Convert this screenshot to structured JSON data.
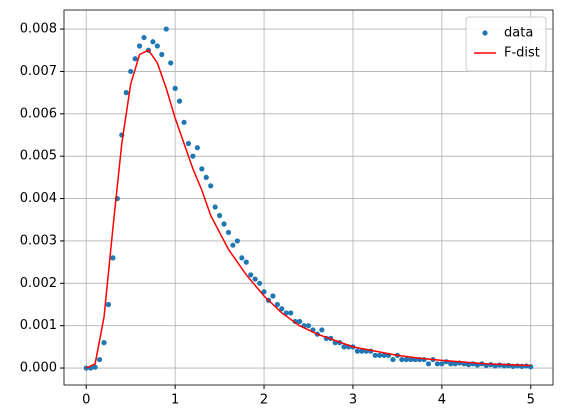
{
  "chart_data": {
    "type": "scatter+line",
    "xlim": [
      -0.25,
      5.25
    ],
    "ylim": [
      -0.0004,
      0.00845
    ],
    "xticks": [
      0,
      1,
      2,
      3,
      4,
      5
    ],
    "yticks": [
      {
        "value": 0,
        "label": "0.000"
      },
      {
        "value": 0.001,
        "label": "0.001"
      },
      {
        "value": 0.002,
        "label": "0.002"
      },
      {
        "value": 0.003,
        "label": "0.003"
      },
      {
        "value": 0.004,
        "label": "0.004"
      },
      {
        "value": 0.005,
        "label": "0.005"
      },
      {
        "value": 0.006,
        "label": "0.006"
      },
      {
        "value": 0.007,
        "label": "0.007"
      },
      {
        "value": 0.008,
        "label": "0.008"
      }
    ],
    "grid": true,
    "legend": "upper right",
    "series": [
      {
        "name": "data",
        "type": "scatter",
        "color": "#1f77b4",
        "x": [
          0,
          0.05,
          0.1,
          0.15,
          0.2,
          0.25,
          0.3,
          0.35,
          0.4,
          0.45,
          0.5,
          0.55,
          0.6,
          0.65,
          0.7,
          0.75,
          0.8,
          0.85,
          0.9,
          0.95,
          1,
          1.05,
          1.1,
          1.15,
          1.2,
          1.25,
          1.3,
          1.35,
          1.4,
          1.45,
          1.5,
          1.55,
          1.6,
          1.65,
          1.7,
          1.75,
          1.8,
          1.85,
          1.9,
          1.95,
          2,
          2.05,
          2.1,
          2.15,
          2.2,
          2.25,
          2.3,
          2.35,
          2.4,
          2.45,
          2.5,
          2.55,
          2.6,
          2.65,
          2.7,
          2.75,
          2.8,
          2.85,
          2.9,
          2.95,
          3,
          3.05,
          3.1,
          3.15,
          3.2,
          3.25,
          3.3,
          3.35,
          3.4,
          3.45,
          3.5,
          3.55,
          3.6,
          3.65,
          3.7,
          3.75,
          3.8,
          3.85,
          3.9,
          3.95,
          4,
          4.05,
          4.1,
          4.15,
          4.2,
          4.25,
          4.3,
          4.35,
          4.4,
          4.45,
          4.5,
          4.55,
          4.6,
          4.65,
          4.7,
          4.75,
          4.8,
          4.85,
          4.9,
          4.95,
          5
        ],
        "values": [
          0,
          0,
          2e-05,
          0.0002,
          0.0006,
          0.0015,
          0.0026,
          0.004,
          0.0055,
          0.0065,
          0.007,
          0.0073,
          0.0076,
          0.0078,
          0.0075,
          0.0077,
          0.0076,
          0.0074,
          0.008,
          0.0072,
          0.0066,
          0.0063,
          0.0058,
          0.0053,
          0.005,
          0.0052,
          0.0047,
          0.0045,
          0.0043,
          0.0038,
          0.0036,
          0.0034,
          0.0032,
          0.0029,
          0.003,
          0.0026,
          0.0025,
          0.0022,
          0.0021,
          0.002,
          0.0018,
          0.0016,
          0.0017,
          0.0015,
          0.0014,
          0.0013,
          0.0013,
          0.0011,
          0.0011,
          0.001,
          0.001,
          0.0009,
          0.0008,
          0.0009,
          0.0007,
          0.0007,
          0.0006,
          0.0006,
          0.0005,
          0.0005,
          0.0005,
          0.0004,
          0.0004,
          0.0004,
          0.0004,
          0.0003,
          0.0003,
          0.0003,
          0.0003,
          0.0002,
          0.0003,
          0.0002,
          0.0002,
          0.0002,
          0.0002,
          0.0002,
          0.0002,
          0.0001,
          0.0002,
          0.0001,
          0.0001,
          0.00015,
          0.0001,
          0.0001,
          0.00012,
          0.0001,
          8e-05,
          0.0001,
          7e-05,
          0.0001,
          6e-05,
          8e-05,
          5e-05,
          7e-05,
          5e-05,
          6e-05,
          4e-05,
          5e-05,
          4e-05,
          5e-05,
          3e-05
        ]
      },
      {
        "name": "F-dist",
        "type": "line",
        "color": "#ff0000",
        "x": [
          0,
          0.1,
          0.2,
          0.3,
          0.4,
          0.5,
          0.6,
          0.7,
          0.8,
          0.9,
          1,
          1.1,
          1.2,
          1.3,
          1.4,
          1.5,
          1.6,
          1.8,
          2,
          2.2,
          2.4,
          2.6,
          2.8,
          3,
          3.25,
          3.5,
          3.75,
          4,
          4.25,
          4.5,
          4.75,
          5
        ],
        "values": [
          0,
          0.0001,
          0.0012,
          0.0033,
          0.0053,
          0.0067,
          0.0074,
          0.0075,
          0.0072,
          0.0066,
          0.0059,
          0.0053,
          0.0047,
          0.0042,
          0.0036,
          0.0032,
          0.0028,
          0.0022,
          0.0017,
          0.0013,
          0.001,
          0.0008,
          0.00065,
          0.0005,
          0.0004,
          0.0003,
          0.00023,
          0.00018,
          0.00014,
          0.0001,
          8e-05,
          6e-05
        ]
      }
    ]
  }
}
